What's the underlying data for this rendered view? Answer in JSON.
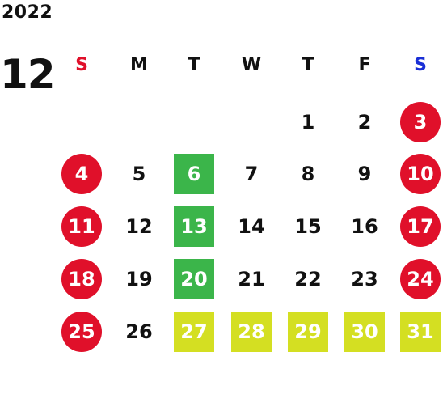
{
  "calendar": {
    "year": "2022",
    "month": "12",
    "weekdays": [
      {
        "label": "S",
        "color": "#e0102a"
      },
      {
        "label": "M",
        "color": "#111111"
      },
      {
        "label": "T",
        "color": "#111111"
      },
      {
        "label": "W",
        "color": "#111111"
      },
      {
        "label": "T",
        "color": "#111111"
      },
      {
        "label": "F",
        "color": "#111111"
      },
      {
        "label": "S",
        "color": "#1a2fd6"
      }
    ],
    "colors": {
      "holiday": "#e0102a",
      "green": "#3bb54a",
      "yellow": "#d4df22"
    },
    "weeks": [
      [
        null,
        null,
        null,
        null,
        {
          "day": "1",
          "mark": ""
        },
        {
          "day": "2",
          "mark": ""
        },
        {
          "day": "3",
          "mark": "holiday"
        }
      ],
      [
        {
          "day": "4",
          "mark": "holiday"
        },
        {
          "day": "5",
          "mark": ""
        },
        {
          "day": "6",
          "mark": "green"
        },
        {
          "day": "7",
          "mark": ""
        },
        {
          "day": "8",
          "mark": ""
        },
        {
          "day": "9",
          "mark": ""
        },
        {
          "day": "10",
          "mark": "holiday"
        }
      ],
      [
        {
          "day": "11",
          "mark": "holiday"
        },
        {
          "day": "12",
          "mark": ""
        },
        {
          "day": "13",
          "mark": "green"
        },
        {
          "day": "14",
          "mark": ""
        },
        {
          "day": "15",
          "mark": ""
        },
        {
          "day": "16",
          "mark": ""
        },
        {
          "day": "17",
          "mark": "holiday"
        }
      ],
      [
        {
          "day": "18",
          "mark": "holiday"
        },
        {
          "day": "19",
          "mark": ""
        },
        {
          "day": "20",
          "mark": "green"
        },
        {
          "day": "21",
          "mark": ""
        },
        {
          "day": "22",
          "mark": ""
        },
        {
          "day": "23",
          "mark": ""
        },
        {
          "day": "24",
          "mark": "holiday"
        }
      ],
      [
        {
          "day": "25",
          "mark": "holiday"
        },
        {
          "day": "26",
          "mark": ""
        },
        {
          "day": "27",
          "mark": "yellow"
        },
        {
          "day": "28",
          "mark": "yellow"
        },
        {
          "day": "29",
          "mark": "yellow"
        },
        {
          "day": "30",
          "mark": "yellow"
        },
        {
          "day": "31",
          "mark": "yellow"
        }
      ]
    ]
  }
}
